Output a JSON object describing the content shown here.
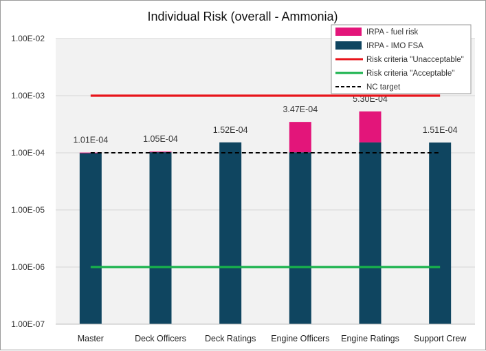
{
  "chart_data": {
    "type": "bar",
    "title": "Individual Risk  (overall - Ammonia)",
    "categories": [
      "Master",
      "Deck Officers",
      "Deck Ratings",
      "Engine Officers",
      "Engine Ratings",
      "Support Crew"
    ],
    "y_scale": "log",
    "ylim": [
      1e-07,
      0.01
    ],
    "y_ticks": [
      "1.00E-07",
      "1.00E-06",
      "1.00E-05",
      "1.00E-04",
      "1.00E-03",
      "1.00E-02"
    ],
    "grid": true,
    "legend_position": "top-right",
    "series": [
      {
        "name": "IRPA - IMO FSA",
        "type": "bar",
        "stacked": true,
        "color": "#0f4560",
        "values": [
          0.0001,
          0.000103,
          0.000152,
          0.000102,
          0.000152,
          0.000151
        ]
      },
      {
        "name": "IRPA - fuel risk",
        "type": "bar",
        "stacked": true,
        "color": "#e3157a",
        "values": [
          1e-06,
          2e-06,
          0,
          0.000245,
          0.000378,
          0
        ]
      },
      {
        "name": "Risk criteria \"Unacceptable\"",
        "type": "line",
        "color": "#e8141b",
        "value": 0.001
      },
      {
        "name": "Risk criteria \"Acceptable\"",
        "type": "line",
        "color": "#18b24b",
        "value": 1e-06
      },
      {
        "name": "NC target",
        "type": "line",
        "style": "dashed",
        "color": "#000000",
        "value": 0.0001
      }
    ],
    "data_labels": [
      "1.01E-04",
      "1.05E-04",
      "1.52E-04",
      "3.47E-04",
      "5.30E-04",
      "1.51E-04"
    ],
    "totals": [
      0.000101,
      0.000105,
      0.000152,
      0.000347,
      0.00053,
      0.000151
    ]
  }
}
